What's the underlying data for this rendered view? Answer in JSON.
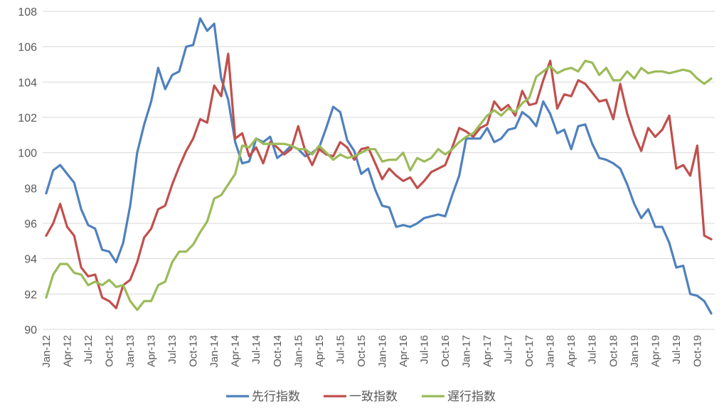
{
  "chart_data": {
    "type": "line",
    "ylim": [
      90,
      108
    ],
    "y_ticks": [
      90,
      92,
      94,
      96,
      98,
      100,
      102,
      104,
      106,
      108
    ],
    "x_tick_labels": [
      "Jan-12",
      "Apr-12",
      "Jul-12",
      "Oct-12",
      "Jan-13",
      "Apr-13",
      "Jul-13",
      "Oct-13",
      "Jan-14",
      "Apr-14",
      "Jul-14",
      "Oct-14",
      "Jan-15",
      "Apr-15",
      "Jul-15",
      "Oct-15",
      "Jan-16",
      "Apr-16",
      "Jul-16",
      "Oct-16",
      "Jan-17",
      "Apr-17",
      "Jul-17",
      "Oct-17",
      "Jan-18",
      "Apr-18",
      "Jul-18",
      "Oct-18",
      "Jan-19",
      "Apr-19",
      "Jul-19",
      "Oct-19"
    ],
    "x_tick_step_months": 3,
    "grid": "horizontal",
    "legend_position": "bottom-center",
    "series": [
      {
        "name": "先行指数",
        "color": "#4f81bd",
        "values": [
          97.7,
          99.0,
          99.3,
          98.8,
          98.3,
          96.8,
          95.9,
          95.7,
          94.5,
          94.4,
          93.8,
          94.9,
          97.0,
          100.0,
          101.6,
          102.9,
          104.8,
          103.6,
          104.4,
          104.6,
          106.0,
          106.1,
          107.6,
          106.9,
          107.3,
          104.2,
          103.0,
          100.6,
          99.4,
          99.5,
          100.8,
          100.6,
          100.9,
          99.7,
          100.0,
          100.4,
          100.2,
          99.8,
          100.0,
          100.3,
          101.4,
          102.6,
          102.3,
          100.7,
          100.1,
          98.8,
          99.1,
          97.9,
          97.0,
          96.9,
          95.8,
          95.9,
          95.8,
          96.0,
          96.3,
          96.4,
          96.5,
          96.4,
          97.6,
          98.7,
          100.8,
          100.8,
          100.8,
          101.4,
          100.6,
          100.8,
          101.3,
          101.4,
          102.3,
          102.0,
          101.5,
          102.9,
          102.2,
          101.1,
          101.3,
          100.2,
          101.5,
          101.6,
          100.5,
          99.7,
          99.6,
          99.4,
          99.1,
          98.2,
          97.1,
          96.3,
          96.8,
          95.8,
          95.8,
          94.9,
          93.5,
          93.6,
          92.0,
          91.9,
          91.6,
          90.9
        ]
      },
      {
        "name": "一致指数",
        "color": "#c0504d",
        "values": [
          95.3,
          96.0,
          97.1,
          95.8,
          95.3,
          93.5,
          93.0,
          93.1,
          91.8,
          91.6,
          91.2,
          92.5,
          92.8,
          93.8,
          95.2,
          95.7,
          96.8,
          97.0,
          98.2,
          99.2,
          100.1,
          100.8,
          101.9,
          101.7,
          103.8,
          103.2,
          105.6,
          100.8,
          101.1,
          99.8,
          100.3,
          99.4,
          100.6,
          100.3,
          99.9,
          100.2,
          101.5,
          100.1,
          99.3,
          100.2,
          99.9,
          99.8,
          100.6,
          100.3,
          99.6,
          100.2,
          100.3,
          99.4,
          98.5,
          99.1,
          98.7,
          98.4,
          98.6,
          98.0,
          98.4,
          98.9,
          99.1,
          99.3,
          100.3,
          101.4,
          101.2,
          100.9,
          101.4,
          101.6,
          102.9,
          102.4,
          102.7,
          102.1,
          103.5,
          102.7,
          102.8,
          104.1,
          105.2,
          102.5,
          103.3,
          103.2,
          104.1,
          103.9,
          103.4,
          102.9,
          103.0,
          101.9,
          103.9,
          102.2,
          101.0,
          100.1,
          101.4,
          100.9,
          101.3,
          102.1,
          99.1,
          99.3,
          98.7,
          100.4,
          95.3,
          95.1
        ]
      },
      {
        "name": "遅行指数",
        "color": "#9bbb59",
        "values": [
          91.8,
          93.1,
          93.7,
          93.7,
          93.2,
          93.1,
          92.5,
          92.7,
          92.5,
          92.8,
          92.4,
          92.5,
          91.6,
          91.1,
          91.6,
          91.6,
          92.5,
          92.7,
          93.8,
          94.4,
          94.4,
          94.8,
          95.5,
          96.1,
          97.4,
          97.6,
          98.2,
          98.8,
          100.4,
          100.3,
          100.8,
          100.5,
          100.5,
          100.5,
          100.5,
          100.4,
          100.2,
          100.2,
          99.9,
          100.4,
          100.0,
          99.6,
          99.9,
          99.7,
          99.8,
          100.0,
          100.2,
          100.2,
          99.5,
          99.6,
          99.6,
          100.0,
          99.0,
          99.7,
          99.5,
          99.7,
          100.2,
          99.9,
          100.2,
          100.6,
          100.9,
          101.1,
          101.6,
          102.1,
          102.4,
          102.1,
          102.5,
          102.3,
          102.8,
          103.1,
          104.3,
          104.6,
          104.9,
          104.5,
          104.7,
          104.8,
          104.6,
          105.2,
          105.1,
          104.4,
          104.8,
          104.1,
          104.1,
          104.6,
          104.2,
          104.8,
          104.5,
          104.6,
          104.6,
          104.5,
          104.6,
          104.7,
          104.6,
          104.2,
          103.9,
          104.2
        ]
      }
    ]
  }
}
